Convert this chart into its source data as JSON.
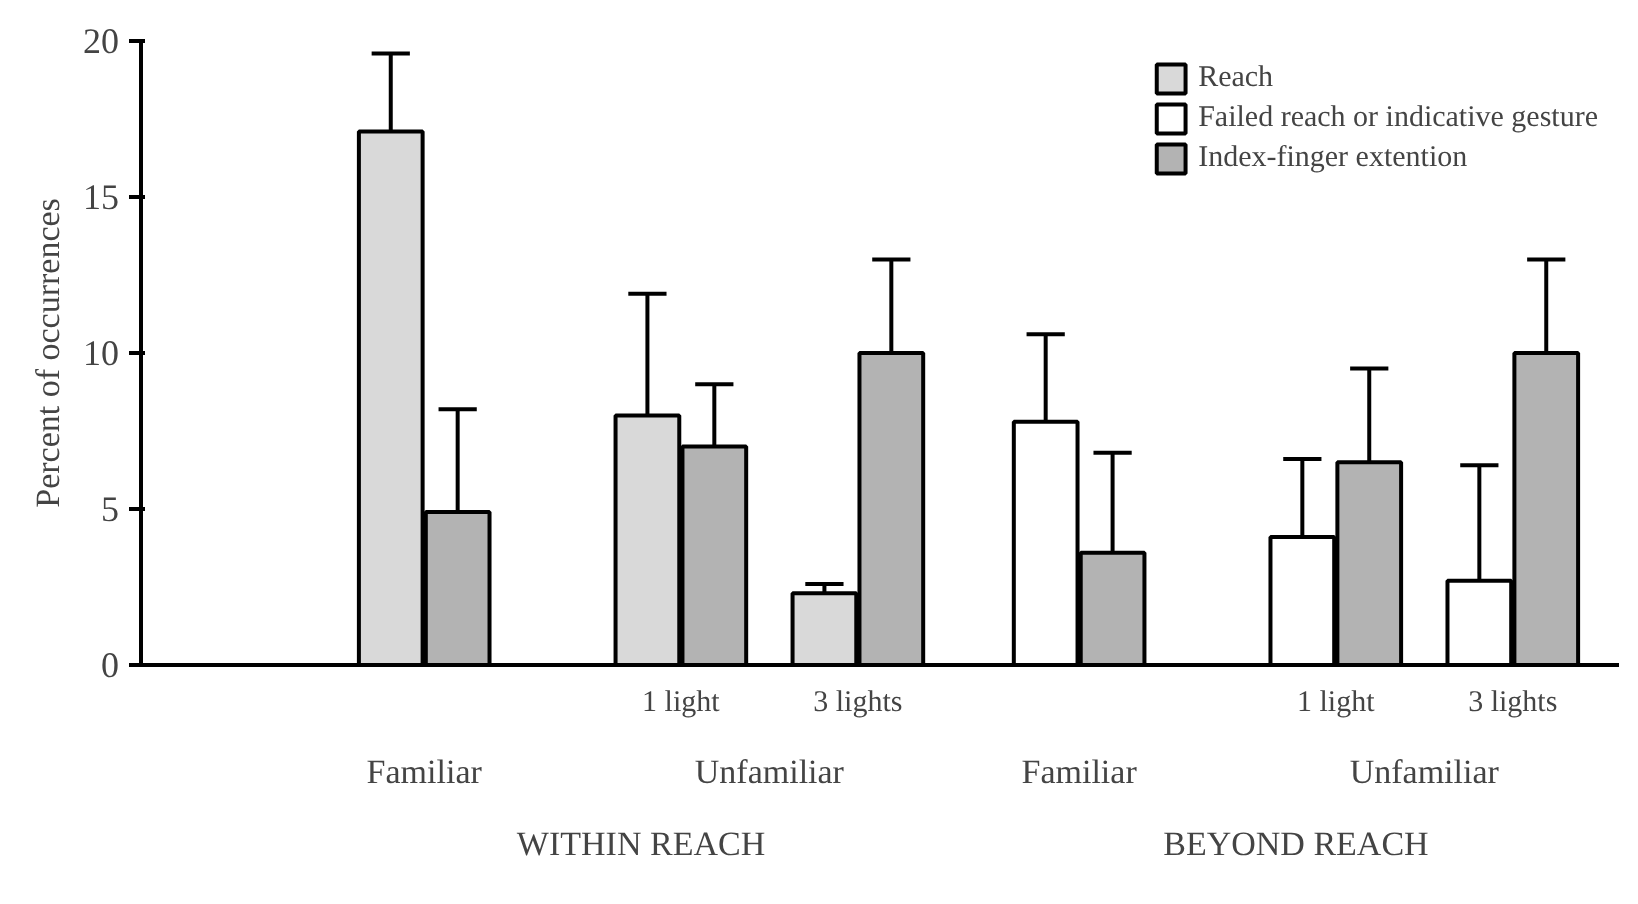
{
  "chart_data": {
    "type": "bar",
    "ylabel": "Percent of occurrences",
    "categories": [
      null,
      "1 light",
      "3 lights",
      null,
      "1 light",
      "3 lights"
    ],
    "series": [
      {
        "name": "Reach",
        "color": "#d9d9d9",
        "values": [
          17.1,
          8.0,
          2.3,
          null,
          null,
          null
        ],
        "errors": [
          [
            17.1,
            19.6
          ],
          [
            8.0,
            11.9
          ],
          [
            2.3,
            2.6
          ],
          null,
          null,
          null
        ]
      },
      {
        "name": "Failed reach or indicative gesture",
        "color": "#ffffff",
        "values": [
          null,
          null,
          null,
          7.8,
          4.1,
          2.7
        ],
        "errors": [
          null,
          null,
          null,
          [
            7.8,
            10.6
          ],
          [
            4.1,
            6.6
          ],
          [
            2.7,
            6.4
          ]
        ]
      },
      {
        "name": "Index-finger extention",
        "color": "#b3b3b3",
        "values": [
          4.9,
          7.0,
          10.0,
          3.6,
          6.5,
          10.0
        ],
        "errors": [
          [
            4.9,
            8.2
          ],
          [
            7.0,
            9.0
          ],
          [
            10.0,
            13.0
          ],
          [
            3.6,
            6.8
          ],
          [
            6.5,
            9.5
          ],
          [
            10.0,
            13.0
          ]
        ]
      }
    ],
    "ylim": [
      0,
      20
    ],
    "yticks": [
      0,
      5,
      10,
      15,
      20
    ],
    "grid": false,
    "legend": "top right",
    "annotations": [
      "Familiar",
      "Unfamiliar",
      "Familiar",
      "Unfamiliar",
      "WITHIN REACH",
      "BEYOND REACH"
    ]
  }
}
